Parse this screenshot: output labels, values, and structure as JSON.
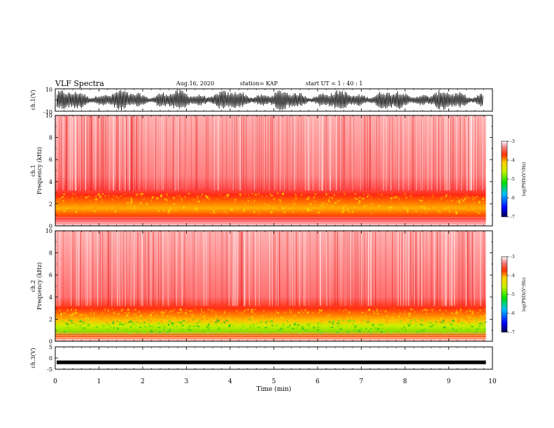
{
  "header": {
    "title": "VLF Spectra",
    "date": "Aug.16, 2020",
    "station": "station= KAP",
    "start_ut": "start UT =   1 : 40 : 1"
  },
  "colors": {
    "spectrogram_low": "#0000b4",
    "spectrogram_mid": "#32e000",
    "spectrogram_high": "#e00000",
    "waveform": "#000000"
  },
  "chart_data": [
    {
      "type": "line",
      "panel": "ch1-waveform",
      "ylabel": "ch.1(V)",
      "ylim": [
        -10,
        10
      ],
      "yticks": [
        "10",
        "-10"
      ],
      "xlim": [
        0,
        10
      ],
      "description_series": "oscillating waveform approx. -9 to +9 V"
    },
    {
      "type": "heatmap",
      "panel": "ch1-spectrogram",
      "ylabel": "ch.1 Frequency (kHz)",
      "ylim": [
        0,
        10
      ],
      "yticks": [
        "10",
        "8",
        "6",
        "4",
        "2",
        "0"
      ],
      "xlim": [
        0,
        10
      ],
      "colorbar": {
        "label": "log(PSD)(V²/Hz)",
        "range": [
          -7,
          -3
        ],
        "ticks": [
          "-3",
          "-4",
          "-5",
          "-6",
          "-7"
        ]
      }
    },
    {
      "type": "heatmap",
      "panel": "ch2-spectrogram",
      "ylabel": "ch.2 Frequency (kHz)",
      "ylim": [
        0,
        10
      ],
      "yticks": [
        "10",
        "8",
        "6",
        "4",
        "2",
        "0"
      ],
      "xlim": [
        0,
        10
      ],
      "colorbar": {
        "label": "log(PSD)(V²/Hz)",
        "range": [
          -7,
          -3
        ],
        "ticks": [
          "-3",
          "-4",
          "-5",
          "-6",
          "-7"
        ]
      }
    },
    {
      "type": "line",
      "panel": "ch3-waveform",
      "ylabel": "ch.3(V)",
      "ylim": [
        -5,
        5
      ],
      "yticks": [
        "5",
        "0",
        "-5"
      ],
      "xlim": [
        0,
        10
      ],
      "xlabel": "Time (min)",
      "xticks": [
        "0",
        "1",
        "2",
        "3",
        "4",
        "5",
        "6",
        "7",
        "8",
        "9",
        "10"
      ]
    }
  ]
}
